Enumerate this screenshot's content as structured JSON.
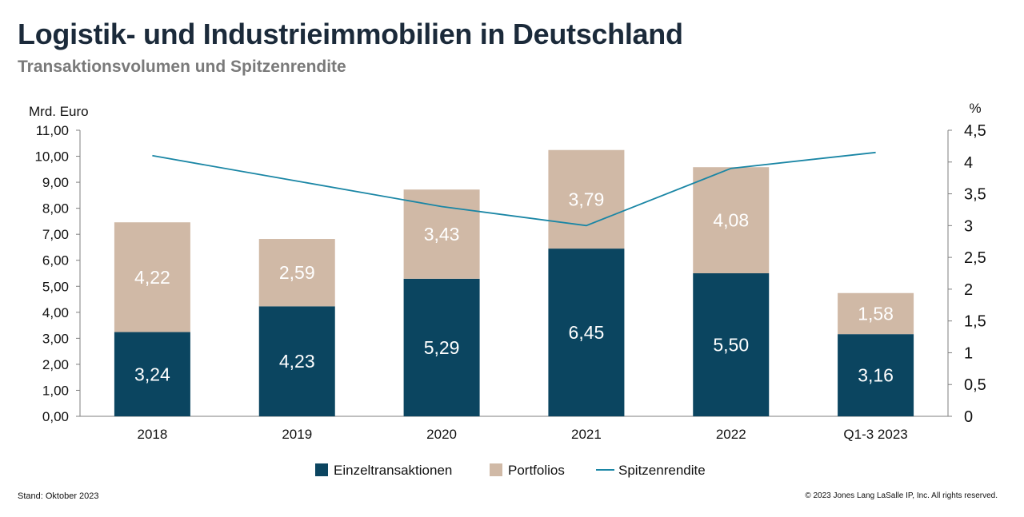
{
  "header": {
    "title": "Logistik- und Industrieimmobilien in Deutschland",
    "subtitle": "Transaktionsvolumen und Spitzenrendite"
  },
  "footer": {
    "source_note": "Stand: Oktober 2023",
    "copyright": "© 2023 Jones Lang LaSalle IP, Inc. All rights reserved."
  },
  "colors": {
    "einzel": "#0b4560",
    "portfolios": "#d0b9a6",
    "spitzenrendite": "#1a86a5",
    "axis": "#7f7f7f",
    "text": "#111111"
  },
  "chart_data": {
    "type": "bar",
    "stacked": true,
    "categories": [
      "2018",
      "2019",
      "2020",
      "2021",
      "2022",
      "Q1-3 2023"
    ],
    "series": [
      {
        "name": "Einzeltransaktionen",
        "values": [
          3.24,
          4.23,
          5.29,
          6.45,
          5.5,
          3.16
        ],
        "labels": [
          "3,24",
          "4,23",
          "5,29",
          "6,45",
          "5,50",
          "3,16"
        ]
      },
      {
        "name": "Portfolios",
        "values": [
          4.22,
          2.59,
          3.43,
          3.79,
          4.08,
          1.58
        ],
        "labels": [
          "4,22",
          "2,59",
          "3,43",
          "3,79",
          "4,08",
          "1,58"
        ]
      }
    ],
    "line_series": {
      "name": "Spitzenrendite",
      "axis": "right",
      "values": [
        4.1,
        3.7,
        3.3,
        3.0,
        3.9,
        4.15
      ]
    },
    "ylabel": "Mrd. Euro",
    "y2label": "%",
    "ylim": [
      0,
      11
    ],
    "y2lim": [
      0,
      4.5
    ],
    "y_ticks": [
      "0,00",
      "1,00",
      "2,00",
      "3,00",
      "4,00",
      "5,00",
      "6,00",
      "7,00",
      "8,00",
      "9,00",
      "10,00",
      "11,00"
    ],
    "y2_ticks": [
      "0",
      "0,5",
      "1",
      "1,5",
      "2",
      "2,5",
      "3",
      "3,5",
      "4",
      "4,5"
    ],
    "legend_position": "bottom",
    "grid": false
  }
}
